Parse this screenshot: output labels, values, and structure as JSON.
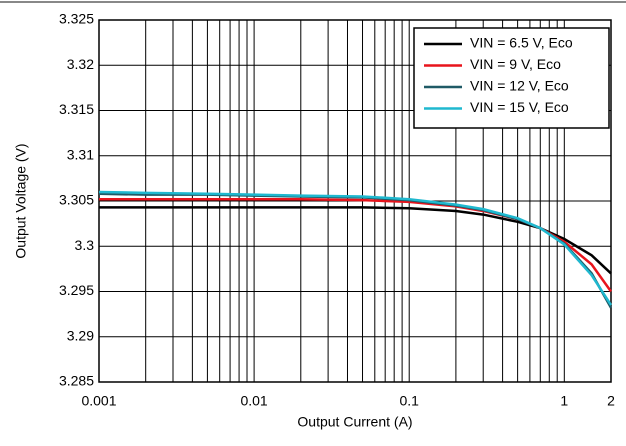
{
  "chart_data": {
    "type": "line",
    "x_label": "Output Current (A)",
    "y_label": "Output Voltage (V)",
    "x_log": true,
    "grid": true,
    "legend": "upper right",
    "xlim": [
      0.001,
      2
    ],
    "xticks": [
      0.001,
      0.01,
      0.1,
      1,
      2
    ],
    "xminor": [
      0.002,
      0.003,
      0.004,
      0.005,
      0.006,
      0.007,
      0.008,
      0.009,
      0.02,
      0.03,
      0.04,
      0.05,
      0.06,
      0.07,
      0.08,
      0.09,
      0.2,
      0.3,
      0.4,
      0.5,
      0.6,
      0.7,
      0.8,
      0.9
    ],
    "ylim": [
      3.285,
      3.325
    ],
    "yticks": [
      3.285,
      3.29,
      3.295,
      3.3,
      3.305,
      3.31,
      3.315,
      3.32,
      3.325
    ],
    "x": [
      0.001,
      0.002,
      0.005,
      0.01,
      0.02,
      0.05,
      0.1,
      0.2,
      0.3,
      0.5,
      0.7,
      1,
      1.5,
      2
    ],
    "series": [
      {
        "name": "VIN = 6.5 V, Eco",
        "color": "#000000",
        "values": [
          3.3043,
          3.3043,
          3.3043,
          3.3043,
          3.3043,
          3.3043,
          3.3042,
          3.3039,
          3.3035,
          3.3027,
          3.302,
          3.3008,
          3.299,
          3.297
        ]
      },
      {
        "name": "VIN = 9 V, Eco",
        "color": "#e8141c",
        "values": [
          3.3052,
          3.3052,
          3.3052,
          3.3052,
          3.3052,
          3.3051,
          3.3049,
          3.3044,
          3.3039,
          3.303,
          3.302,
          3.3005,
          3.298,
          3.295
        ]
      },
      {
        "name": "VIN = 12 V, Eco",
        "color": "#1f5a66",
        "values": [
          3.3058,
          3.3057,
          3.3057,
          3.3056,
          3.3055,
          3.3054,
          3.3051,
          3.3045,
          3.304,
          3.303,
          3.302,
          3.3003,
          3.297,
          3.2932
        ]
      },
      {
        "name": "VIN = 15 V, Eco",
        "color": "#1fb8cf",
        "values": [
          3.306,
          3.3059,
          3.3058,
          3.3057,
          3.3056,
          3.3055,
          3.3052,
          3.3046,
          3.3041,
          3.3031,
          3.302,
          3.3002,
          3.2968,
          3.2935
        ]
      }
    ]
  }
}
